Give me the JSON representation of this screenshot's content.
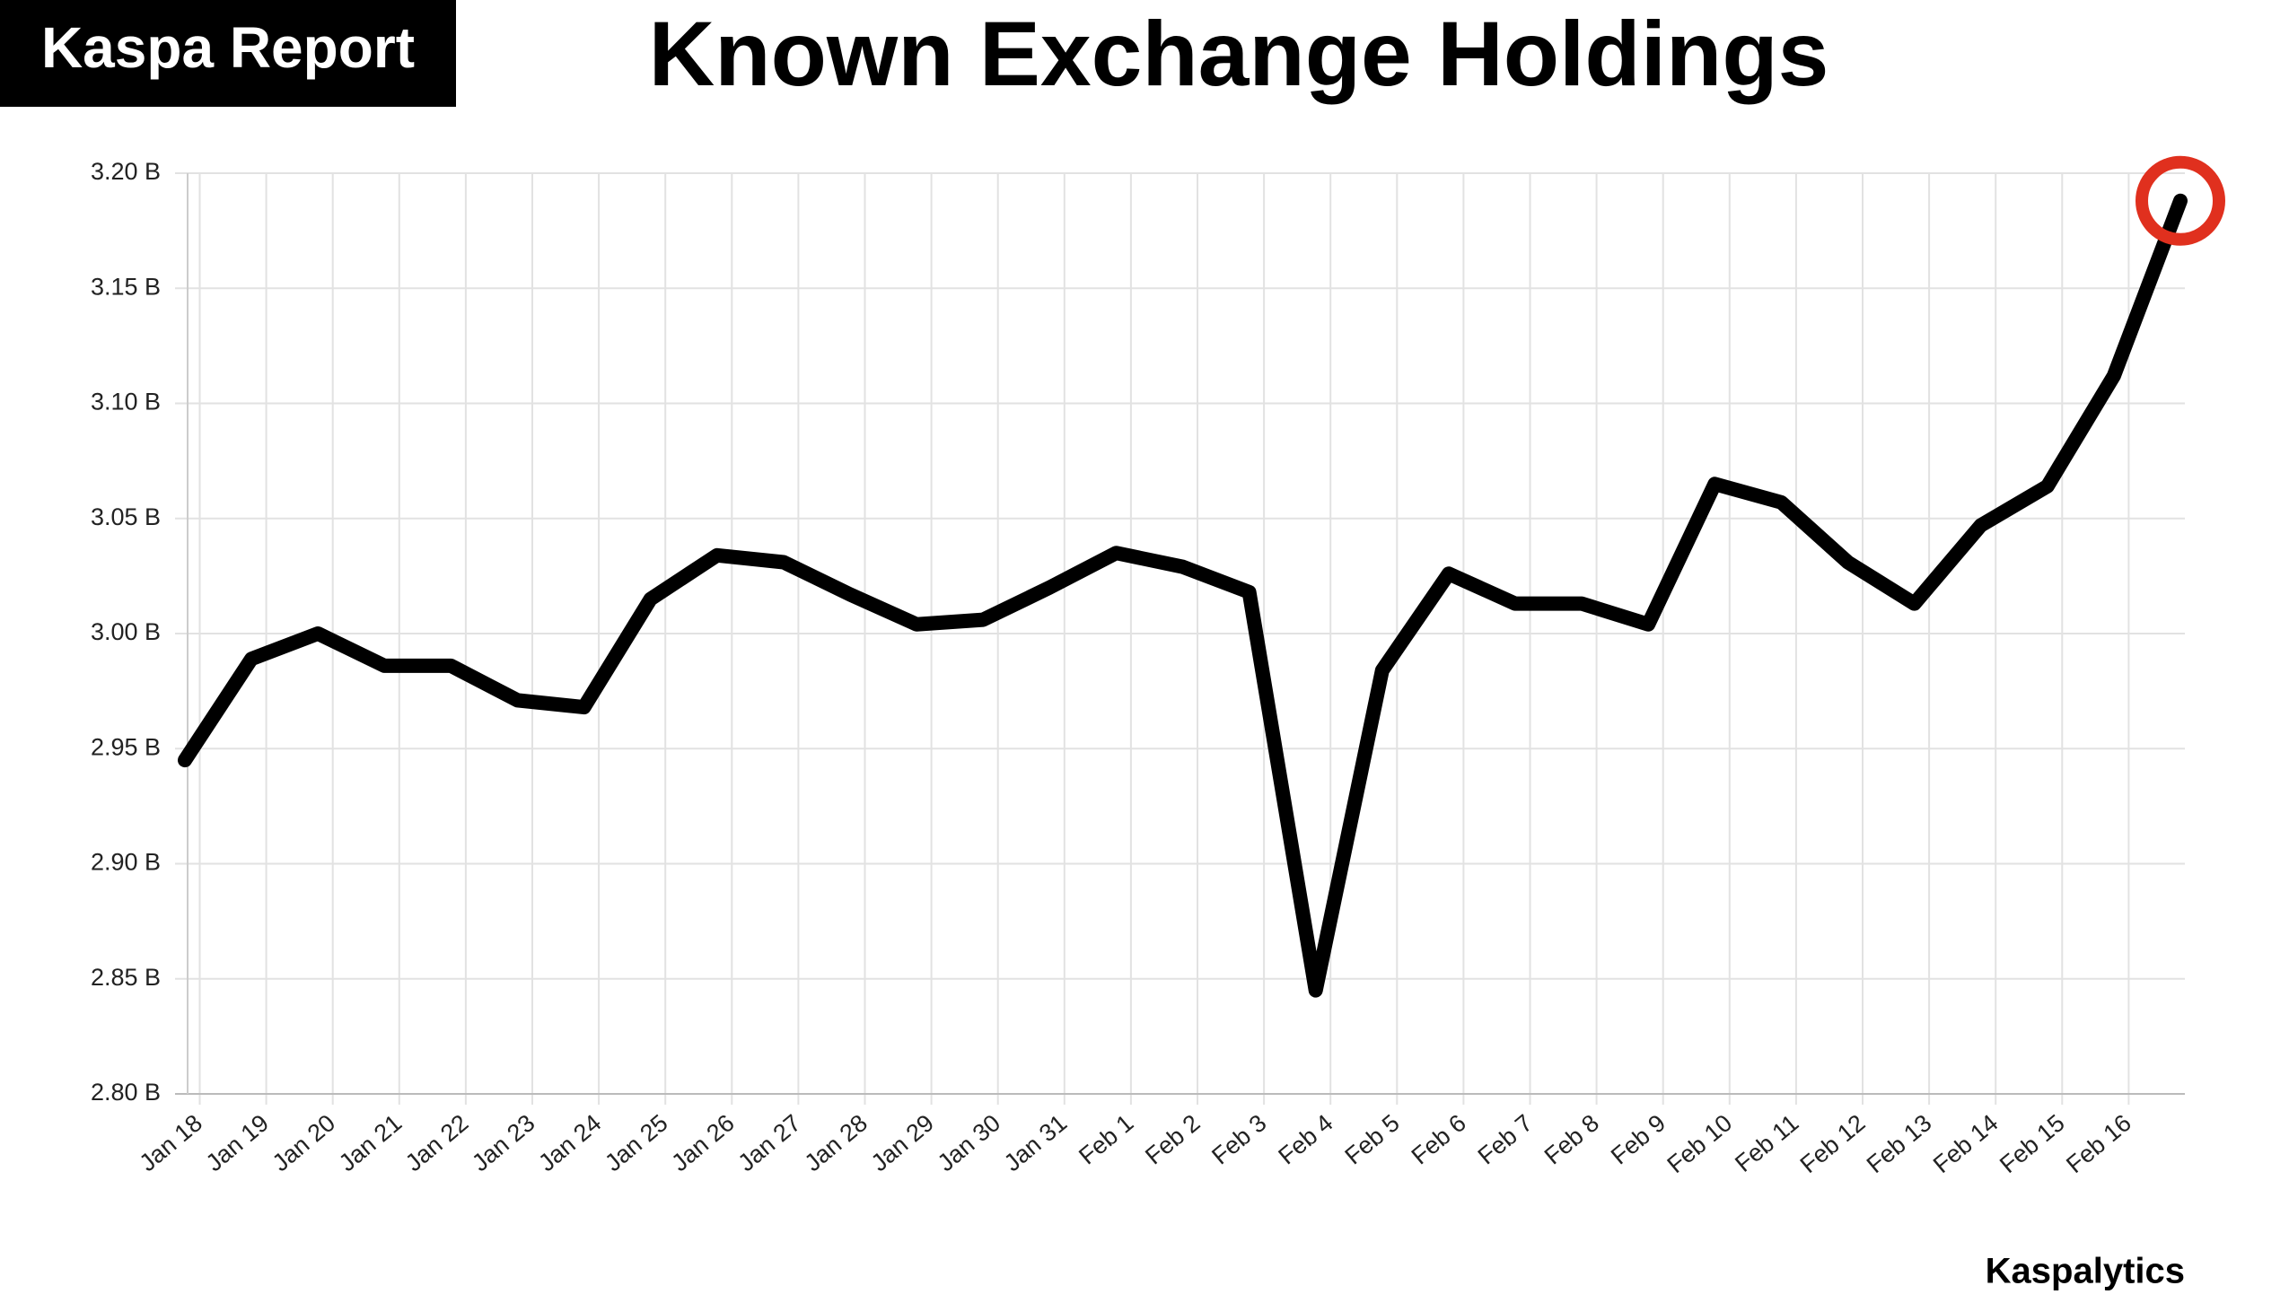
{
  "header": {
    "badge": "Kaspa Report"
  },
  "footer": {
    "credit": "Kaspalytics"
  },
  "chart_data": {
    "type": "line",
    "title": "Known Exchange Holdings",
    "categories": [
      "Jan 18",
      "Jan 19",
      "Jan 20",
      "Jan 21",
      "Jan 22",
      "Jan 23",
      "Jan 24",
      "Jan 25",
      "Jan 26",
      "Jan 27",
      "Jan 28",
      "Jan 29",
      "Jan 30",
      "Jan 31",
      "Feb 1",
      "Feb 2",
      "Feb 3",
      "Feb 4",
      "Feb 5",
      "Feb 6",
      "Feb 7",
      "Feb 8",
      "Feb 9",
      "Feb 10",
      "Feb 11",
      "Feb 12",
      "Feb 13",
      "Feb 14",
      "Feb 15",
      "Feb 16",
      null
    ],
    "series": [
      {
        "name": "Known Exchange Holdings",
        "color": "#000000",
        "values": [
          2.945,
          2.989,
          3.0,
          2.986,
          2.986,
          2.971,
          2.968,
          3.015,
          3.034,
          3.031,
          3.017,
          3.004,
          3.006,
          3.02,
          3.035,
          3.029,
          3.018,
          2.845,
          2.984,
          3.026,
          3.013,
          3.013,
          3.004,
          3.065,
          3.057,
          3.031,
          3.013,
          3.047,
          3.064,
          3.112,
          3.188
        ]
      }
    ],
    "ylim": [
      2.8,
      3.2
    ],
    "yticks": [
      {
        "value": 2.8,
        "label": "2.80 B"
      },
      {
        "value": 2.85,
        "label": "2.85 B"
      },
      {
        "value": 2.9,
        "label": "2.90 B"
      },
      {
        "value": 2.95,
        "label": "2.95 B"
      },
      {
        "value": 3.0,
        "label": "3.00 B"
      },
      {
        "value": 3.05,
        "label": "3.05 B"
      },
      {
        "value": 3.1,
        "label": "3.10 B"
      },
      {
        "value": 3.15,
        "label": "3.15 B"
      },
      {
        "value": 3.2,
        "label": "3.20 B"
      }
    ],
    "grid": true,
    "highlight_color": "#e0301e"
  }
}
